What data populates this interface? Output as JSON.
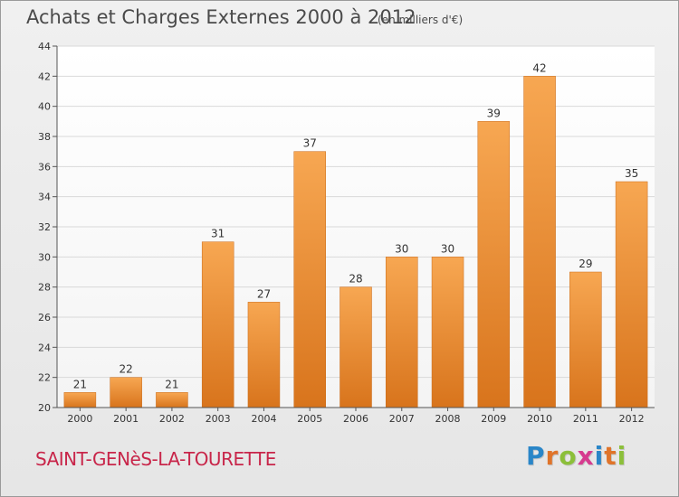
{
  "header": {
    "title": "Achats et Charges Externes 2000 à 2012",
    "subtitle": "(en milliers d'€)"
  },
  "footer": {
    "city": "SAINT-GENèS-LA-TOURETTE",
    "logo_text": "Proxiti",
    "logo_colors": [
      "#2a86c8",
      "#e0742a",
      "#8cbf3a",
      "#d63b8f",
      "#2a86c8",
      "#e0742a",
      "#8cbf3a"
    ]
  },
  "chart_data": {
    "type": "bar",
    "categories": [
      "2000",
      "2001",
      "2002",
      "2003",
      "2004",
      "2005",
      "2006",
      "2007",
      "2008",
      "2009",
      "2010",
      "2011",
      "2012"
    ],
    "values": [
      21,
      22,
      21,
      31,
      27,
      37,
      28,
      30,
      30,
      39,
      42,
      29,
      35
    ],
    "ylim": [
      20,
      44
    ],
    "yticks": [
      20,
      22,
      24,
      26,
      28,
      30,
      32,
      34,
      36,
      38,
      40,
      42,
      44
    ],
    "grid": true,
    "bar_color_top": "#f7a752",
    "bar_color_bottom": "#d8741c"
  }
}
